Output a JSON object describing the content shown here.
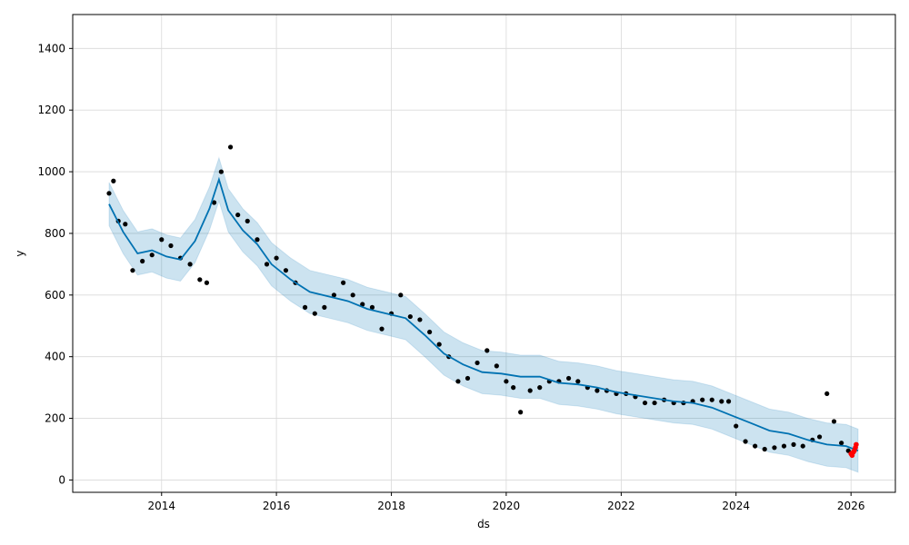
{
  "chart_data": {
    "type": "line",
    "title": "",
    "xlabel": "ds",
    "ylabel": "y",
    "xlim": [
      "2012-06-15",
      "2026-10-10"
    ],
    "ylim": [
      -40,
      1510
    ],
    "grid": true,
    "x_ticks": [
      "2014",
      "2016",
      "2018",
      "2020",
      "2022",
      "2024",
      "2026"
    ],
    "y_ticks": [
      0,
      200,
      400,
      600,
      800,
      1000,
      1200,
      1400
    ],
    "colors": {
      "forecast_line": "#0072B2",
      "uncertainty_band": "#0072B2",
      "observed_points": "#000000",
      "recent_points": "#ff0000",
      "grid": "#d9d9d9"
    },
    "series": [
      {
        "kind": "forecast",
        "x": [
          "2013-02-01",
          "2013-05-01",
          "2013-08-01",
          "2013-11-01",
          "2014-02-01",
          "2014-05-01",
          "2014-08-01",
          "2014-11-01",
          "2015-01-01",
          "2015-03-01",
          "2015-06-01",
          "2015-09-01",
          "2015-12-01",
          "2016-04-01",
          "2016-08-01",
          "2016-12-01",
          "2017-04-01",
          "2017-08-01",
          "2017-12-01",
          "2018-04-01",
          "2018-08-01",
          "2018-12-01",
          "2019-04-01",
          "2019-08-01",
          "2019-12-01",
          "2020-04-01",
          "2020-08-01",
          "2020-12-01",
          "2021-04-01",
          "2021-08-01",
          "2021-12-01",
          "2022-04-01",
          "2022-08-01",
          "2022-12-01",
          "2023-04-01",
          "2023-08-01",
          "2023-12-01",
          "2024-04-01",
          "2024-08-01",
          "2024-12-01",
          "2025-04-01",
          "2025-08-01",
          "2025-12-01",
          "2026-02-15"
        ],
        "yhat": [
          895,
          805,
          735,
          745,
          725,
          715,
          775,
          880,
          975,
          875,
          810,
          765,
          700,
          650,
          610,
          595,
          580,
          555,
          540,
          525,
          470,
          410,
          375,
          350,
          345,
          335,
          335,
          315,
          310,
          300,
          285,
          275,
          265,
          255,
          250,
          235,
          210,
          185,
          160,
          150,
          130,
          115,
          110,
          95
        ],
        "yhat_lower": [
          825,
          735,
          665,
          675,
          655,
          645,
          705,
          810,
          905,
          805,
          740,
          695,
          630,
          580,
          540,
          525,
          510,
          485,
          470,
          455,
          400,
          340,
          305,
          280,
          275,
          265,
          265,
          245,
          240,
          230,
          215,
          205,
          195,
          185,
          180,
          165,
          140,
          115,
          90,
          80,
          60,
          45,
          40,
          25
        ],
        "yhat_upper": [
          965,
          875,
          805,
          815,
          795,
          785,
          845,
          950,
          1045,
          945,
          880,
          835,
          770,
          720,
          680,
          665,
          650,
          625,
          610,
          595,
          540,
          480,
          445,
          420,
          415,
          405,
          405,
          385,
          380,
          370,
          355,
          345,
          335,
          325,
          320,
          305,
          280,
          255,
          230,
          220,
          200,
          185,
          180,
          165
        ]
      },
      {
        "kind": "observed",
        "x": [
          "2013-02-01",
          "2013-03-01",
          "2013-04-01",
          "2013-05-15",
          "2013-07-01",
          "2013-09-01",
          "2013-11-01",
          "2014-01-01",
          "2014-03-01",
          "2014-05-01",
          "2014-07-01",
          "2014-09-01",
          "2014-10-15",
          "2014-12-01",
          "2015-01-15",
          "2015-03-15",
          "2015-05-01",
          "2015-07-01",
          "2015-09-01",
          "2015-11-01",
          "2016-01-01",
          "2016-03-01",
          "2016-05-01",
          "2016-07-01",
          "2016-09-01",
          "2016-11-01",
          "2017-01-01",
          "2017-03-01",
          "2017-05-01",
          "2017-07-01",
          "2017-09-01",
          "2017-11-01",
          "2018-01-01",
          "2018-03-01",
          "2018-05-01",
          "2018-07-01",
          "2018-09-01",
          "2018-11-01",
          "2019-01-01",
          "2019-03-01",
          "2019-05-01",
          "2019-07-01",
          "2019-09-01",
          "2019-11-01",
          "2020-01-01",
          "2020-02-15",
          "2020-04-01",
          "2020-06-01",
          "2020-08-01",
          "2020-10-01",
          "2020-12-01",
          "2021-02-01",
          "2021-04-01",
          "2021-06-01",
          "2021-08-01",
          "2021-10-01",
          "2021-12-01",
          "2022-02-01",
          "2022-04-01",
          "2022-06-01",
          "2022-08-01",
          "2022-10-01",
          "2022-12-01",
          "2023-02-01",
          "2023-04-01",
          "2023-06-01",
          "2023-08-01",
          "2023-10-01",
          "2023-11-15",
          "2024-01-01",
          "2024-03-01",
          "2024-05-01",
          "2024-07-01",
          "2024-09-01",
          "2024-11-01",
          "2025-01-01",
          "2025-03-01",
          "2025-05-01",
          "2025-06-15",
          "2025-08-01",
          "2025-09-15",
          "2025-11-01",
          "2025-12-15"
        ],
        "y": [
          930,
          970,
          840,
          830,
          680,
          710,
          730,
          780,
          760,
          720,
          700,
          650,
          640,
          900,
          1000,
          1080,
          860,
          840,
          780,
          700,
          720,
          680,
          640,
          560,
          540,
          560,
          600,
          640,
          600,
          570,
          560,
          490,
          540,
          600,
          530,
          520,
          480,
          440,
          400,
          320,
          330,
          380,
          420,
          370,
          320,
          300,
          220,
          290,
          300,
          320,
          320,
          330,
          320,
          300,
          290,
          290,
          280,
          280,
          270,
          250,
          250,
          260,
          250,
          250,
          255,
          260,
          260,
          255,
          255,
          175,
          125,
          110,
          100,
          105,
          110,
          115,
          110,
          130,
          140,
          280,
          190,
          120,
          95
        ]
      },
      {
        "kind": "recent",
        "x": [
          "2026-01-01",
          "2026-01-08",
          "2026-01-15",
          "2026-01-22",
          "2026-01-29",
          "2026-02-03"
        ],
        "y": [
          85,
          80,
          90,
          95,
          105,
          115
        ]
      }
    ]
  }
}
